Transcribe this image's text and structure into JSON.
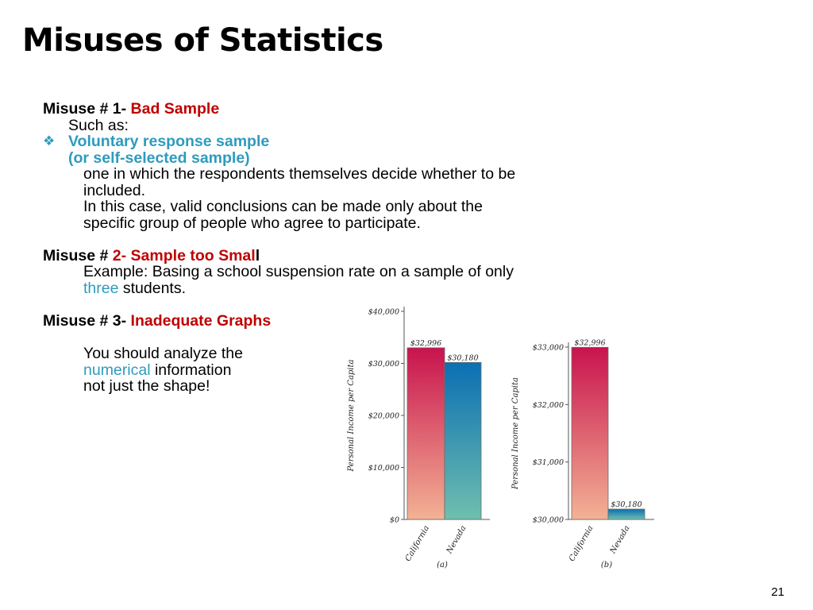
{
  "slide": {
    "title": "Misuses of Statistics",
    "page_number": "21"
  },
  "misuse1": {
    "prefix": "Misuse # 1- ",
    "name": "Bad Sample",
    "such_as": "Such as:",
    "bullet_icon": "diamond-bullet-icon",
    "term_line1": "Voluntary response sample",
    "term_line2": "(or self-selected sample)",
    "desc1": "one in which the respondents themselves decide whether to be",
    "desc2": "included.",
    "desc3": "In this case, valid conclusions can be made only about the",
    "desc4": "specific group of people who agree to participate."
  },
  "misuse2": {
    "prefix": "Misuse # ",
    "name_red": "2- Sample too Smal",
    "name_tail": "l",
    "example_line1": "Example:  Basing a school suspension rate on a sample of only",
    "example_highlight": "three",
    "example_rest": " students."
  },
  "misuse3": {
    "prefix": "Misuse # 3- ",
    "name": "Inadequate Graphs",
    "line1": "You should analyze the",
    "highlight": "numerical",
    "line2_rest": " information",
    "line3": "not just the shape!"
  },
  "colors": {
    "red": "#c00000",
    "teal": "#2e9bbd",
    "california_top": "#c8134d",
    "california_bottom": "#f3b295",
    "nevada_top": "#0b6fb3",
    "nevada_bottom": "#6fbfae"
  },
  "chart_data": [
    {
      "type": "bar",
      "panel_label": "(a)",
      "ylabel": "Personal Income per Capita",
      "categories": [
        "California",
        "Nevada"
      ],
      "values": [
        32996,
        30180
      ],
      "value_labels": [
        "$32,996",
        "$30,180"
      ],
      "ylim": [
        0,
        40000
      ],
      "yticks": [
        0,
        10000,
        20000,
        30000,
        40000
      ],
      "ytick_labels": [
        "$0",
        "$10,000",
        "$20,000",
        "$30,000",
        "$40,000"
      ]
    },
    {
      "type": "bar",
      "panel_label": "(b)",
      "ylabel": "Personal Income per Capita",
      "categories": [
        "California",
        "Nevada"
      ],
      "values": [
        32996,
        30180
      ],
      "value_labels": [
        "$32,996",
        "$30,180"
      ],
      "ylim": [
        30000,
        33000
      ],
      "yticks": [
        30000,
        31000,
        32000,
        33000
      ],
      "ytick_labels": [
        "$30,000",
        "$31,000",
        "$32,000",
        "$33,000"
      ]
    }
  ]
}
